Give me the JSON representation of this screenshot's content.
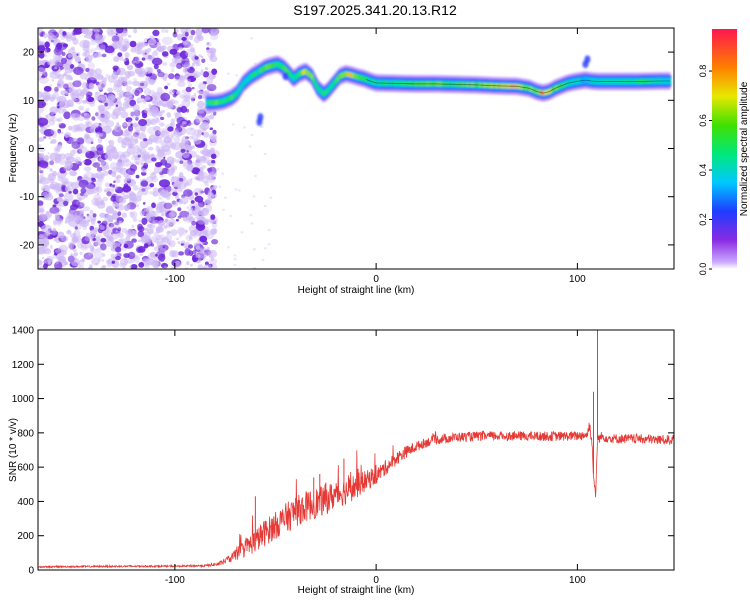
{
  "title": "S197.2025.341.20.13.R12",
  "colors": {
    "snr_line": "#e53935",
    "speckle_light": "#cdb7f5",
    "speckle_dark": "#6a22d9"
  },
  "chart_data": [
    {
      "type": "heatmap",
      "xlabel": "Height of straight line (km)",
      "ylabel": "Frequency (Hz)",
      "xlim": [
        -168,
        148
      ],
      "ylim": [
        -25,
        25
      ],
      "xticks": [
        {
          "v": -100,
          "label": "-100"
        },
        {
          "v": 0,
          "label": "0"
        },
        {
          "v": 100,
          "label": "100"
        }
      ],
      "yticks": [
        {
          "v": -20,
          "label": "-20"
        },
        {
          "v": -10,
          "label": "-10"
        },
        {
          "v": 0,
          "label": "0"
        },
        {
          "v": 10,
          "label": "10"
        },
        {
          "v": 20,
          "label": "20"
        }
      ],
      "noise_region_x": [
        -168,
        -82
      ],
      "ridge": {
        "x": [
          -84,
          -80,
          -76,
          -72,
          -69,
          -66,
          -62,
          -58,
          -55,
          -52,
          -49,
          -46,
          -43,
          -41,
          -38,
          -35,
          -32,
          -29,
          -26,
          -24,
          -21,
          -18,
          -15,
          -12,
          -9,
          -6,
          -3,
          0,
          10,
          20,
          30,
          40,
          50,
          60,
          70,
          76,
          80,
          83,
          86,
          89,
          92,
          95,
          98,
          101,
          104,
          107,
          110,
          120,
          130,
          140,
          146
        ],
        "frequency": [
          9.5,
          9.5,
          9.8,
          10.5,
          11.5,
          13.5,
          15.0,
          16.0,
          16.8,
          17.2,
          17.5,
          16.8,
          15.5,
          14.5,
          15.5,
          16.0,
          15.0,
          12.5,
          11.3,
          12.0,
          13.5,
          15.0,
          15.5,
          15.2,
          14.8,
          14.5,
          14.0,
          13.6,
          13.5,
          13.4,
          13.4,
          13.3,
          13.2,
          13.0,
          12.9,
          12.5,
          11.8,
          11.5,
          11.8,
          12.5,
          13.0,
          13.5,
          13.8,
          14.0,
          14.2,
          14.0,
          13.9,
          13.9,
          13.9,
          14.0,
          14.0
        ],
        "amplitude": [
          0.45,
          0.6,
          0.5,
          0.55,
          0.45,
          0.4,
          0.45,
          0.5,
          0.6,
          0.55,
          0.5,
          0.55,
          0.6,
          0.45,
          0.55,
          0.7,
          0.6,
          0.45,
          0.5,
          0.45,
          0.5,
          0.6,
          0.7,
          0.75,
          0.6,
          0.55,
          0.5,
          0.45,
          0.5,
          0.55,
          0.6,
          0.55,
          0.6,
          0.7,
          0.75,
          0.6,
          0.65,
          0.8,
          0.7,
          0.6,
          0.55,
          0.5,
          0.45,
          0.4,
          0.3,
          0.45,
          0.4,
          0.45,
          0.5,
          0.45,
          0.4
        ]
      },
      "colorbar": {
        "label": "Normalized spectral amplitude",
        "range": [
          0,
          0.97
        ],
        "ticks": [
          {
            "v": 0.0,
            "label": "0.0"
          },
          {
            "v": 0.2,
            "label": "0.2"
          },
          {
            "v": 0.4,
            "label": "0.4"
          },
          {
            "v": 0.6,
            "label": "0.6"
          },
          {
            "v": 0.8,
            "label": "0.8"
          }
        ]
      }
    },
    {
      "type": "line",
      "xlabel": "Height of straight line (km)",
      "ylabel": "SNR (10 * v/v)",
      "xlim": [
        -168,
        148
      ],
      "ylim": [
        0,
        1400
      ],
      "xticks": [
        {
          "v": -100,
          "label": "-100"
        },
        {
          "v": 0,
          "label": "0"
        },
        {
          "v": 100,
          "label": "100"
        }
      ],
      "yticks": [
        {
          "v": 0,
          "label": "0"
        },
        {
          "v": 200,
          "label": "200"
        },
        {
          "v": 400,
          "label": "400"
        },
        {
          "v": 600,
          "label": "600"
        },
        {
          "v": 800,
          "label": "800"
        },
        {
          "v": 1000,
          "label": "1000"
        },
        {
          "v": 1200,
          "label": "1200"
        },
        {
          "v": 1400,
          "label": "1400"
        }
      ],
      "series": [
        {
          "name": "SNR",
          "x": [
            -168,
            -150,
            -120,
            -100,
            -85,
            -78,
            -72,
            -66,
            -60,
            -55,
            -50,
            -45,
            -40,
            -35,
            -30,
            -25,
            -20,
            -15,
            -10,
            -5,
            0,
            5,
            10,
            15,
            20,
            25,
            30,
            40,
            50,
            60,
            70,
            80,
            90,
            100,
            105,
            106,
            107,
            108,
            109,
            110,
            112,
            115,
            120,
            130,
            140,
            148
          ],
          "y": [
            18,
            20,
            22,
            22,
            25,
            35,
            70,
            120,
            170,
            220,
            260,
            300,
            340,
            370,
            390,
            410,
            440,
            460,
            490,
            520,
            550,
            600,
            650,
            690,
            720,
            745,
            760,
            775,
            780,
            782,
            782,
            780,
            780,
            782,
            790,
            850,
            780,
            560,
            420,
            760,
            780,
            770,
            765,
            765,
            760,
            760
          ],
          "noise": [
            4,
            5,
            5,
            5,
            6,
            12,
            25,
            50,
            70,
            80,
            80,
            90,
            90,
            90,
            90,
            90,
            80,
            80,
            75,
            60,
            50,
            45,
            40,
            35,
            30,
            28,
            28,
            28,
            28,
            28,
            28,
            28,
            28,
            28,
            30,
            40,
            40,
            30,
            30,
            30,
            28,
            28,
            28,
            28,
            28,
            28
          ],
          "spikes": [
            {
              "x": -60,
              "y": 430
            },
            {
              "x": -50,
              "y": 290
            },
            {
              "x": -40,
              "y": 420
            },
            {
              "x": -31,
              "y": 540
            },
            {
              "x": -28,
              "y": 560
            },
            {
              "x": -25,
              "y": 510
            },
            {
              "x": -16,
              "y": 650
            },
            {
              "x": -9,
              "y": 590
            },
            {
              "x": 108,
              "y": 1040
            },
            {
              "x": 110,
              "y": 1400
            }
          ]
        }
      ]
    }
  ]
}
